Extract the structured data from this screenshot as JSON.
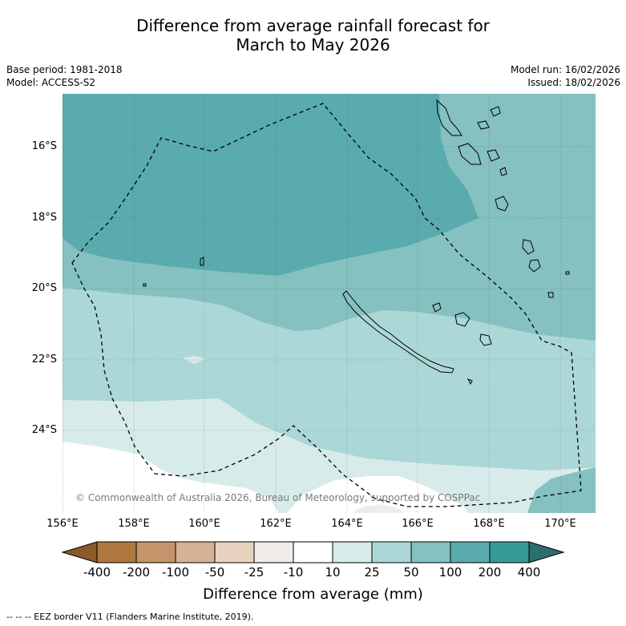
{
  "title_line1": "Difference from average rainfall forecast for",
  "title_line2": "March to May 2026",
  "base_period": "Base period: 1981-2018",
  "model": "Model: ACCESS-S2",
  "model_run": "Model run: 16/02/2026",
  "issued": "Issued: 18/02/2026",
  "copyright": "© Commonwealth of Australia 2026, Bureau of Meteorology, supported by COSPPac",
  "lat_labels": [
    "16°S",
    "18°S",
    "20°S",
    "22°S",
    "24°S"
  ],
  "lon_labels": [
    "156°E",
    "158°E",
    "160°E",
    "162°E",
    "164°E",
    "166°E",
    "168°E",
    "170°E"
  ],
  "colorbar": {
    "ticks": [
      "-400",
      "-200",
      "-100",
      "-50",
      "-25",
      "-10",
      "10",
      "25",
      "50",
      "100",
      "200",
      "400"
    ],
    "colors": [
      "#8b5a2b",
      "#b07840",
      "#c4956a",
      "#d6b394",
      "#e6d2bf",
      "#efecea",
      "#ffffff",
      "#d7ebea",
      "#acd7d7",
      "#84c1c0",
      "#5aabad",
      "#379a98",
      "#2c6e6c"
    ],
    "label": "Difference from average (mm)"
  },
  "map_colors": {
    "deep_teal": "#5aabad",
    "mid_teal": "#84c1c0",
    "light_teal": "#acd7d7",
    "pale_teal": "#d7ebea",
    "white": "#ffffff",
    "near_zero": "#efecea"
  },
  "footnote": "--  --  -- EEZ border V11 (Flanders Marine Institute, 2019)."
}
